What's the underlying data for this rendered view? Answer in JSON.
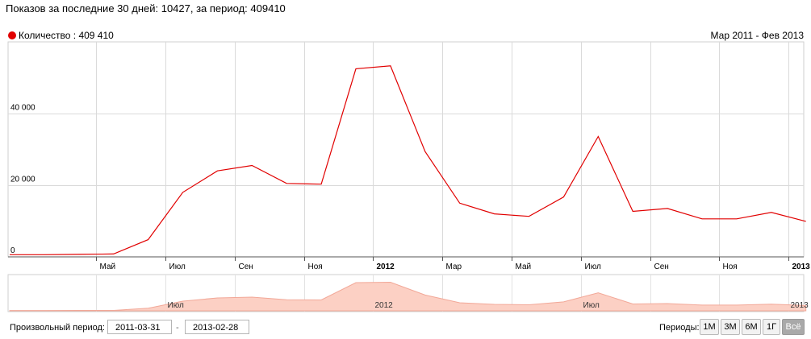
{
  "header": {
    "stats_text": "Показов за последние 30 дней: 10427, за период: 409410"
  },
  "legend": {
    "label": "Количество : 409 410",
    "color": "#e10000"
  },
  "range_label": "Мар 2011 - Фев 2013",
  "chart_data": {
    "type": "line",
    "x": [
      "2011-03",
      "2011-04",
      "2011-05",
      "2011-06",
      "2011-07",
      "2011-08",
      "2011-09",
      "2011-10",
      "2011-11",
      "2011-12",
      "2012-01",
      "2012-02",
      "2012-03",
      "2012-04",
      "2012-05",
      "2012-06",
      "2012-07",
      "2012-08",
      "2012-09",
      "2012-10",
      "2012-11",
      "2012-12",
      "2013-01",
      "2013-02"
    ],
    "series": [
      {
        "name": "Количество",
        "values": [
          600,
          600,
          700,
          800,
          4800,
          18000,
          24000,
          25500,
          20500,
          20300,
          52500,
          53300,
          29400,
          15000,
          12000,
          11300,
          16700,
          33600,
          12700,
          13500,
          10600,
          10600,
          12400,
          9900
        ],
        "color": "#e10000"
      }
    ],
    "yticks": [
      "0",
      "20 000",
      "40 000"
    ],
    "ytick_values": [
      0,
      20000,
      40000
    ],
    "ylim": [
      0,
      60000
    ],
    "xtick_labels": [
      {
        "month": "2011-05",
        "label": "Май",
        "bold": false
      },
      {
        "month": "2011-07",
        "label": "Июл",
        "bold": false
      },
      {
        "month": "2011-09",
        "label": "Сен",
        "bold": false
      },
      {
        "month": "2011-11",
        "label": "Ноя",
        "bold": false
      },
      {
        "month": "2012-01",
        "label": "2012",
        "bold": true
      },
      {
        "month": "2012-03",
        "label": "Мар",
        "bold": false
      },
      {
        "month": "2012-05",
        "label": "Май",
        "bold": false
      },
      {
        "month": "2012-07",
        "label": "Июл",
        "bold": false
      },
      {
        "month": "2012-09",
        "label": "Сен",
        "bold": false
      },
      {
        "month": "2012-11",
        "label": "Ноя",
        "bold": false
      },
      {
        "month": "2013-01",
        "label": "2013",
        "bold": true
      }
    ],
    "navigator_labels": [
      {
        "month": "2011-07",
        "label": "Июл"
      },
      {
        "month": "2012-01",
        "label": "2012"
      },
      {
        "month": "2012-07",
        "label": "Июл"
      },
      {
        "month": "2013-01",
        "label": "2013"
      }
    ],
    "grid": true
  },
  "footer": {
    "period_label": "Произвольный период:",
    "date_from": "2011-03-31",
    "date_sep": "-",
    "date_to": "2013-02-28",
    "periods_label": "Периоды:",
    "period_buttons": [
      "1М",
      "3М",
      "6М",
      "1Г",
      "Всё"
    ],
    "active_period": 4
  }
}
